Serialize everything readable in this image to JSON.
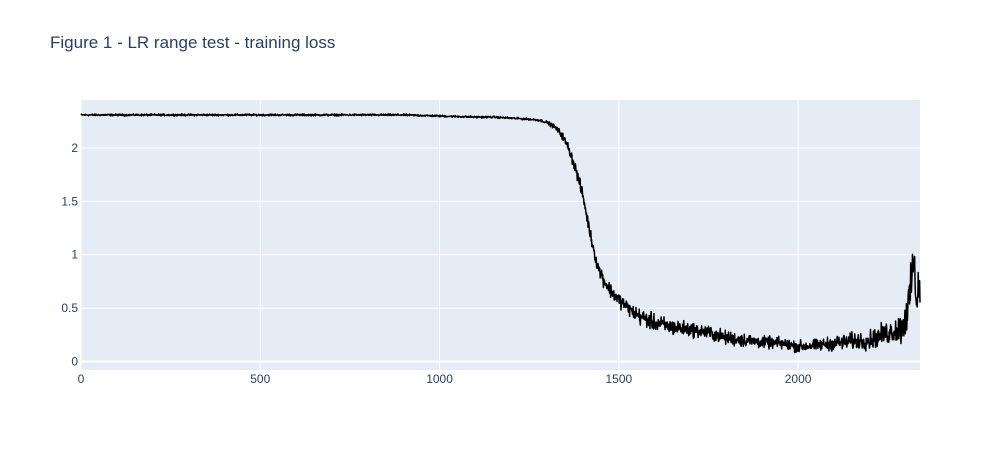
{
  "colors": {
    "plot_background": "#e5ecf6",
    "grid": "#ffffff",
    "line": "#000000",
    "text": "#2a3f5f"
  },
  "chart_data": {
    "type": "line",
    "title": "Figure 1 - LR range test - training loss",
    "xlabel": "",
    "ylabel": "",
    "xlim": [
      0,
      2340
    ],
    "ylim": [
      -0.08,
      2.45
    ],
    "grid": true,
    "legend": "none",
    "x_ticks": [
      {
        "value": 0,
        "label": "0"
      },
      {
        "value": 500,
        "label": "500"
      },
      {
        "value": 1000,
        "label": "1000"
      },
      {
        "value": 1500,
        "label": "1500"
      },
      {
        "value": 2000,
        "label": "2000"
      }
    ],
    "y_ticks": [
      {
        "value": 0,
        "label": "0"
      },
      {
        "value": 0.5,
        "label": "0.5"
      },
      {
        "value": 1,
        "label": "1"
      },
      {
        "value": 1.5,
        "label": "1.5"
      },
      {
        "value": 2,
        "label": "2"
      }
    ],
    "series": [
      {
        "color": "#000000",
        "x": [
          0,
          100,
          200,
          300,
          400,
          500,
          600,
          700,
          800,
          900,
          1000,
          1100,
          1150,
          1200,
          1250,
          1280,
          1300,
          1320,
          1340,
          1360,
          1380,
          1400,
          1420,
          1440,
          1460,
          1480,
          1500,
          1520,
          1540,
          1560,
          1600,
          1650,
          1700,
          1750,
          1800,
          1850,
          1900,
          1950,
          2000,
          2050,
          2100,
          2150,
          2200,
          2230,
          2260,
          2280,
          2290,
          2300,
          2310,
          2315,
          2320,
          2325,
          2330,
          2335,
          2340
        ],
        "y": [
          2.31,
          2.31,
          2.31,
          2.31,
          2.31,
          2.31,
          2.31,
          2.31,
          2.31,
          2.31,
          2.3,
          2.29,
          2.29,
          2.28,
          2.27,
          2.26,
          2.24,
          2.2,
          2.13,
          2.0,
          1.8,
          1.55,
          1.2,
          0.9,
          0.75,
          0.65,
          0.58,
          0.52,
          0.46,
          0.42,
          0.36,
          0.32,
          0.3,
          0.27,
          0.22,
          0.2,
          0.18,
          0.17,
          0.14,
          0.15,
          0.17,
          0.19,
          0.2,
          0.24,
          0.28,
          0.3,
          0.32,
          0.42,
          0.55,
          0.68,
          0.95,
          0.8,
          0.6,
          0.7,
          0.65
        ],
        "noise_amplitude": [
          0.008,
          0.008,
          0.008,
          0.008,
          0.008,
          0.008,
          0.008,
          0.008,
          0.008,
          0.008,
          0.008,
          0.008,
          0.008,
          0.008,
          0.008,
          0.01,
          0.012,
          0.02,
          0.03,
          0.04,
          0.05,
          0.05,
          0.05,
          0.05,
          0.06,
          0.06,
          0.06,
          0.06,
          0.06,
          0.07,
          0.07,
          0.07,
          0.06,
          0.06,
          0.06,
          0.06,
          0.05,
          0.05,
          0.05,
          0.05,
          0.06,
          0.07,
          0.08,
          0.09,
          0.1,
          0.12,
          0.14,
          0.18,
          0.2,
          0.2,
          0.22,
          0.2,
          0.18,
          0.18,
          0.18
        ]
      }
    ]
  }
}
